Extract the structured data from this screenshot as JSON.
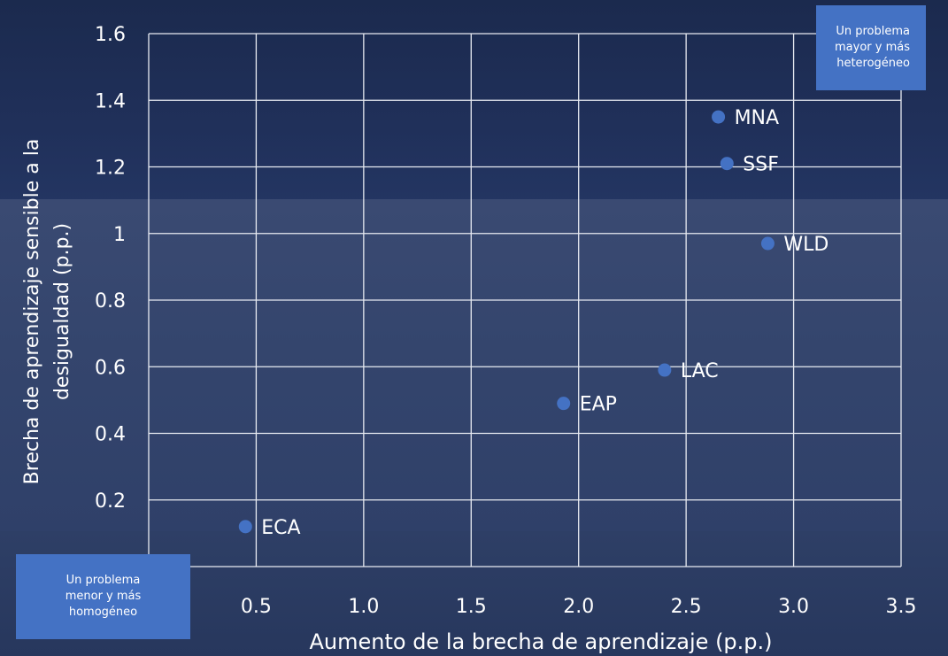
{
  "chart_data": {
    "type": "scatter",
    "xlabel": "Aumento de la brecha de aprendizaje (p.p.)",
    "ylabel": "Brecha de aprendizaje sensible a la desigualdad (p.p.)",
    "ylabel_lines": [
      "Brecha de aprendizaje sensible a la",
      "desigualdad (p.p.)"
    ],
    "xlim": [
      0,
      3.5
    ],
    "ylim": [
      0,
      1.6
    ],
    "x_ticks": [
      {
        "value": 0.5,
        "label": "0.5"
      },
      {
        "value": 1.0,
        "label": "1.0"
      },
      {
        "value": 1.5,
        "label": "1.5"
      },
      {
        "value": 2.0,
        "label": "2.0"
      },
      {
        "value": 2.5,
        "label": "2.5"
      },
      {
        "value": 3.0,
        "label": "3.0"
      },
      {
        "value": 3.5,
        "label": "3.5"
      }
    ],
    "y_ticks": [
      {
        "value": 0.2,
        "label": "0.2"
      },
      {
        "value": 0.4,
        "label": "0.4"
      },
      {
        "value": 0.6,
        "label": "0.6"
      },
      {
        "value": 0.8,
        "label": "0.8"
      },
      {
        "value": 1.0,
        "label": "1"
      },
      {
        "value": 1.2,
        "label": "1.2"
      },
      {
        "value": 1.4,
        "label": "1.4"
      },
      {
        "value": 1.6,
        "label": "1.6"
      }
    ],
    "grid": true,
    "points": [
      {
        "label": "ECA",
        "x": 0.45,
        "y": 0.12
      },
      {
        "label": "EAP",
        "x": 1.93,
        "y": 0.49
      },
      {
        "label": "LAC",
        "x": 2.4,
        "y": 0.59
      },
      {
        "label": "WLD",
        "x": 2.88,
        "y": 0.97
      },
      {
        "label": "SSF",
        "x": 2.69,
        "y": 1.21
      },
      {
        "label": "MNA",
        "x": 2.65,
        "y": 1.35
      }
    ],
    "point_color": "#4472c4",
    "gridline_color": "#e8ebf2"
  },
  "annotations": {
    "top_right_lines": [
      "Un problema",
      "mayor y más",
      "heterogéneo"
    ],
    "bottom_left_lines": [
      "Un problema",
      "menor y más",
      "homogéneo"
    ]
  },
  "colors": {
    "text": "#ffffff",
    "annotation_box": "#4472c4"
  }
}
